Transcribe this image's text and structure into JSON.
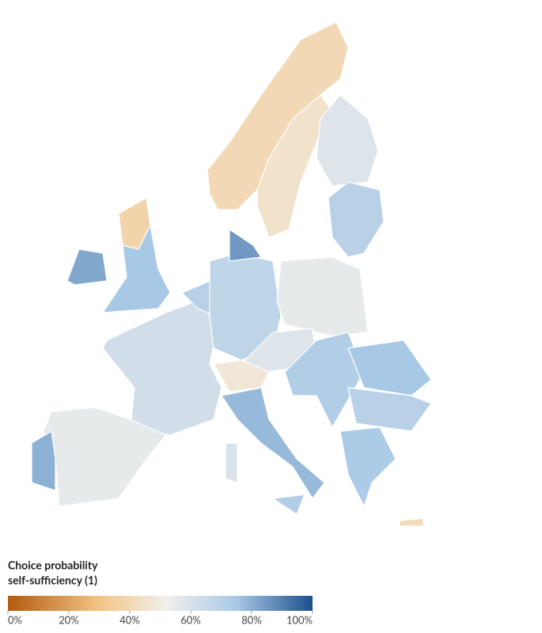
{
  "chart_data": {
    "type": "choropleth",
    "title": [
      "Choice probability",
      "self-sufficiency (1)"
    ],
    "colorscale": [
      [
        0,
        "#b35a0e"
      ],
      [
        30,
        "#f3c585"
      ],
      [
        52,
        "#f1efec"
      ],
      [
        75,
        "#a8c9e6"
      ],
      [
        100,
        "#1c4f8c"
      ]
    ],
    "legend_range": [
      0,
      100
    ],
    "legend_ticks": [
      {
        "value": 0,
        "label": "0%"
      },
      {
        "value": 20,
        "label": "20%"
      },
      {
        "value": 40,
        "label": "40%"
      },
      {
        "value": 60,
        "label": "60%"
      },
      {
        "value": 80,
        "label": "80%"
      },
      {
        "value": 100,
        "label": "100%"
      }
    ],
    "region_values": [
      40,
      45,
      58,
      70,
      38,
      75,
      82,
      62,
      55,
      80,
      70,
      68,
      85,
      55,
      58,
      48,
      78,
      72,
      60,
      72,
      75,
      70,
      74,
      42
    ]
  }
}
